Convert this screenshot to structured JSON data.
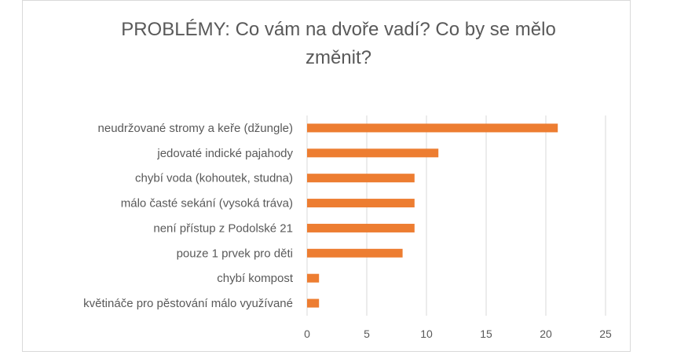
{
  "chart_data": {
    "type": "bar",
    "orientation": "horizontal",
    "title": "PROBLÉMY: Co vám na dvoře vadí? Co by se mělo změnit?",
    "categories": [
      "neudržované stromy a keře (džungle)",
      "jedovaté indické pajahody",
      "chybí voda (kohoutek, studna)",
      "málo časté sekání (vysoká tráva)",
      "není přístup z Podolské 21",
      "pouze 1 prvek pro děti",
      "chybí kompost",
      "květináče pro pěstování málo využívané"
    ],
    "values": [
      21,
      11,
      9,
      9,
      9,
      8,
      1,
      1
    ],
    "xlim": [
      0,
      25
    ],
    "xticks": [
      "0",
      "5",
      "10",
      "15",
      "20",
      "25"
    ],
    "xlabel": "",
    "ylabel": "",
    "grid": "vertical",
    "legend": "none",
    "bar_color": "#ed7d31",
    "grid_color": "#d9d9d9",
    "text_color": "#595959"
  }
}
